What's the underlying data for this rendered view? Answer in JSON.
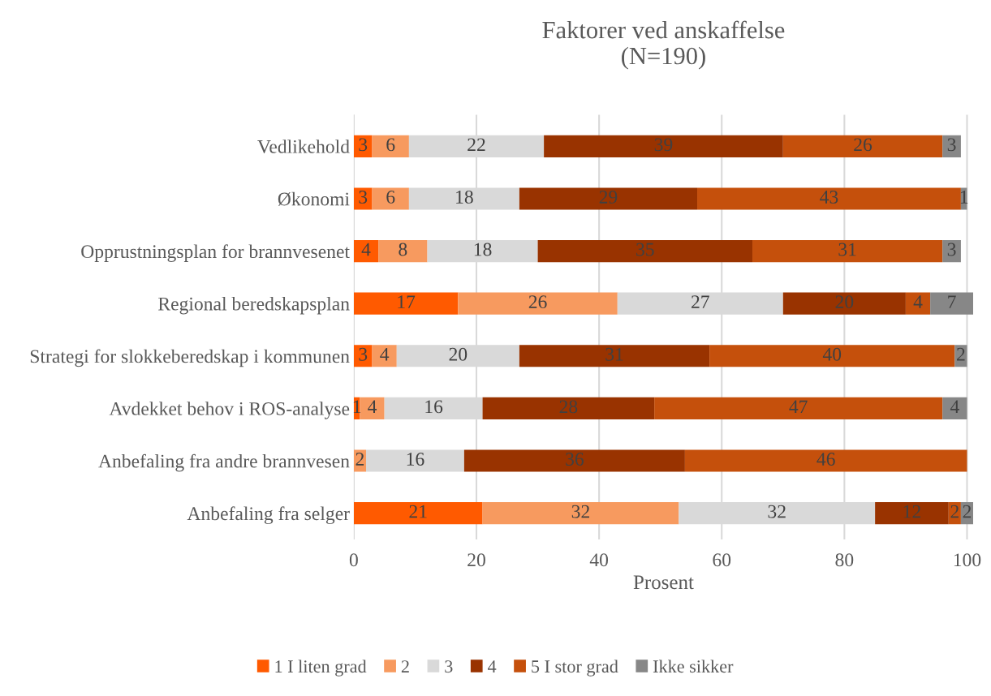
{
  "chart_data": {
    "type": "bar",
    "orientation": "horizontal",
    "stacked": true,
    "title": "Faktorer ved anskaffelse\n(N=190)",
    "xlabel": "Prosent",
    "categories": [
      "Vedlikehold",
      "Økonomi",
      "Opprustningsplan for brannvesenet",
      "Regional beredskapsplan",
      "Strategi for slokkeberedskap i kommunen",
      "Avdekket behov i ROS-analyse",
      "Anbefaling fra andre brannvesen",
      "Anbefaling fra selger"
    ],
    "series": [
      {
        "name": "1 I liten grad",
        "color": "#ff5a00",
        "values": [
          3,
          3,
          4,
          17,
          3,
          1,
          null,
          21
        ]
      },
      {
        "name": "2",
        "color": "#f79a5f",
        "values": [
          6,
          6,
          8,
          26,
          4,
          4,
          2,
          32
        ]
      },
      {
        "name": "3",
        "color": "#d9d9d9",
        "values": [
          22,
          18,
          18,
          27,
          20,
          16,
          16,
          32
        ]
      },
      {
        "name": "4",
        "color": "#993300",
        "values": [
          39,
          29,
          35,
          20,
          31,
          28,
          36,
          12
        ]
      },
      {
        "name": "5 I stor grad",
        "color": "#c5500c",
        "values": [
          26,
          43,
          31,
          4,
          40,
          47,
          46,
          2
        ]
      },
      {
        "name": "Ikke sikker",
        "color": "#878787",
        "values": [
          3,
          1,
          3,
          7,
          2,
          4,
          null,
          2
        ]
      }
    ],
    "xlim": [
      0,
      101
    ],
    "xticks": [
      0,
      20,
      40,
      60,
      80,
      100
    ],
    "grid": "x",
    "legend": "bottom",
    "data_labels": true
  }
}
